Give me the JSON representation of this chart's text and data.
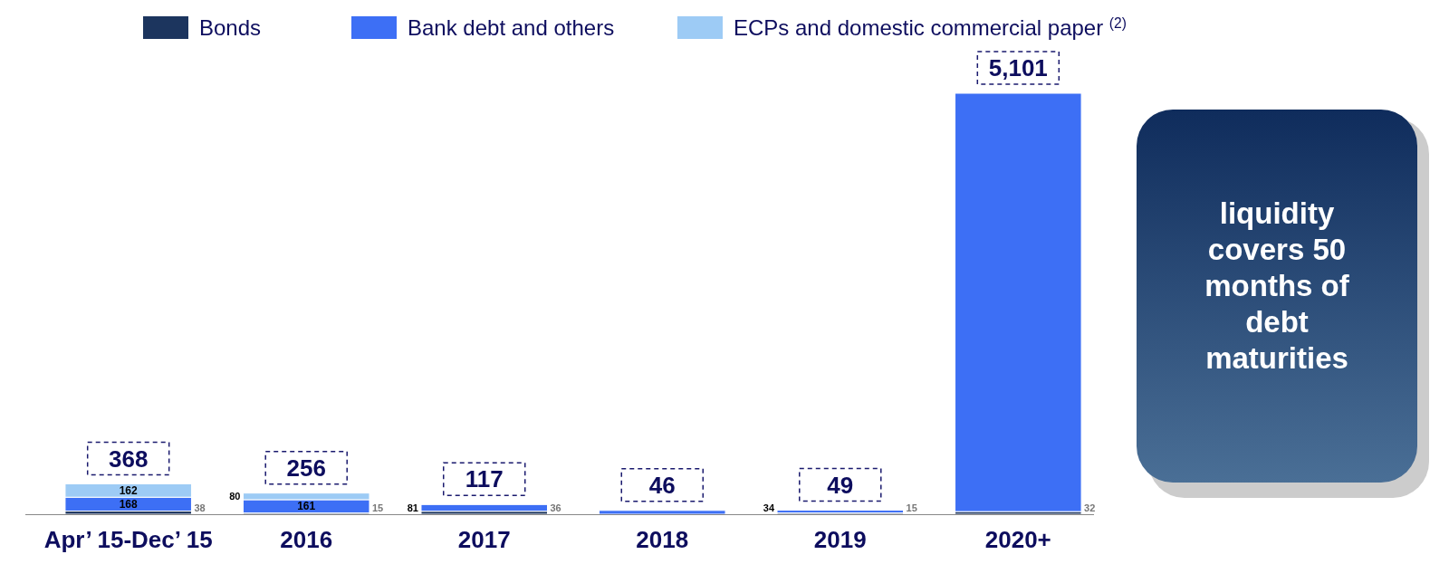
{
  "chart_data": {
    "type": "bar",
    "stacked": true,
    "categories": [
      "Apr’ 15-Dec’ 15",
      "2016",
      "2017",
      "2018",
      "2019",
      "2020+"
    ],
    "series": [
      {
        "name": "Bonds",
        "color": "#1c355e",
        "values": [
          38,
          15,
          36,
          null,
          15,
          32
        ],
        "value_labels": [
          "38",
          "15",
          "36",
          null,
          "15",
          "32"
        ]
      },
      {
        "name": "Bank debt and others",
        "color": "#3d6ff5",
        "values": [
          168,
          161,
          81,
          46,
          34,
          5069
        ],
        "value_labels": [
          "168",
          "161",
          "81",
          null,
          "34",
          null
        ]
      },
      {
        "name": "ECPs and domestic commercial paper $^{(2)}$",
        "color": "#9dcbf5",
        "values": [
          162,
          80,
          null,
          null,
          null,
          null
        ],
        "value_labels": [
          "162",
          "80",
          null,
          null,
          null,
          null
        ]
      }
    ],
    "totals": [
      "368",
      "256",
      "117",
      "46",
      "49",
      "5,101"
    ],
    "legend": "top",
    "annotations": [
      "liquidity covers 50 months of debt maturities"
    ]
  }
}
